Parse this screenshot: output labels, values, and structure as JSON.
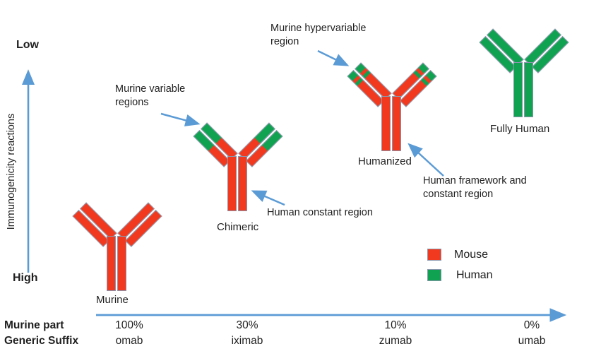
{
  "colors": {
    "mouse": "#f0391f",
    "human": "#10a251",
    "arrow": "#5b9bd5",
    "outline": "#8a97ae",
    "text": "#1f1f1f"
  },
  "y_axis": {
    "low": "Low",
    "high": "High",
    "label": "Immunogenicity reactions"
  },
  "antibodies": [
    {
      "id": "murine",
      "label": "Murine",
      "stem": "mouse",
      "arm_segments": [
        [
          "mouse",
          1
        ]
      ]
    },
    {
      "id": "chimeric",
      "label": "Chimeric",
      "stem": "mouse",
      "arm_segments": [
        [
          "human",
          0.47
        ],
        [
          "mouse",
          0.53
        ]
      ]
    },
    {
      "id": "humanized",
      "label": "Humanized",
      "stem": "mouse",
      "arm_segments": [
        [
          "human",
          0.15
        ],
        [
          "mouse",
          0.08
        ],
        [
          "human",
          0.08
        ],
        [
          "mouse",
          0.69
        ]
      ]
    },
    {
      "id": "fully_human",
      "label": "Fully Human",
      "stem": "human",
      "arm_segments": [
        [
          "human",
          1
        ]
      ]
    }
  ],
  "annotations": {
    "murine_variable": {
      "line1": "Murine variable",
      "line2": "regions"
    },
    "murine_hypervariable": {
      "line1": "Murine hypervariable",
      "line2": "region"
    },
    "human_constant": {
      "line1": "Human constant region",
      "line2": ""
    },
    "human_framework": {
      "line1": "Human framework and",
      "line2": "constant region"
    }
  },
  "legend": {
    "mouse_label": "Mouse",
    "human_label": "Human"
  },
  "x_axis": {
    "row1_header": "Murine part",
    "row2_header": "Generic Suffix",
    "columns": [
      {
        "percent": "100%",
        "suffix": "omab"
      },
      {
        "percent": "30%",
        "suffix": "iximab"
      },
      {
        "percent": "10%",
        "suffix": "zumab"
      },
      {
        "percent": "0%",
        "suffix": "umab"
      }
    ]
  }
}
